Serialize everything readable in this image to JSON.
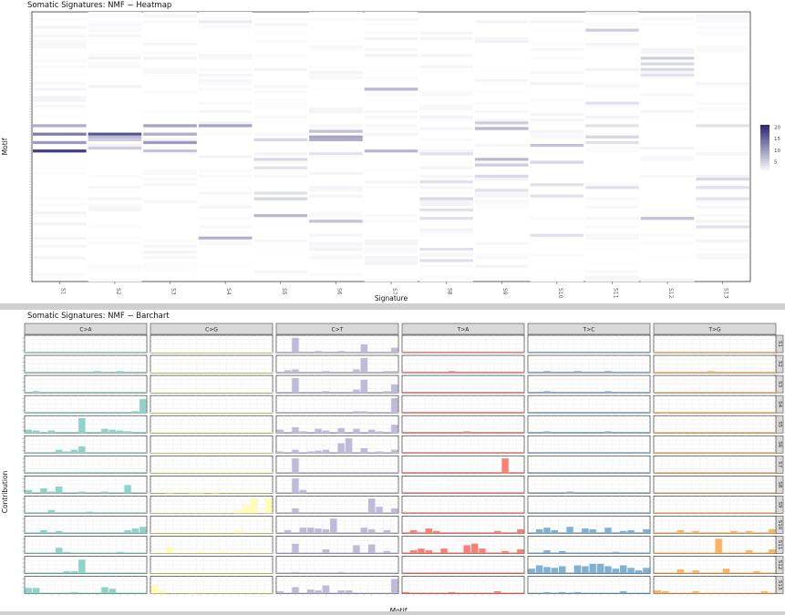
{
  "heatmap": {
    "title": "Somatic Signatures: NMF − Heatmap",
    "xlabel": "Signature",
    "ylabel": "Motif",
    "legend_ticks": [
      20,
      15,
      10,
      5
    ],
    "chart_data": {
      "type": "heatmap",
      "x_categories": [
        "S1",
        "S2",
        "S3",
        "S4",
        "S5",
        "S6",
        "S7",
        "S8",
        "S9",
        "S10",
        "S11",
        "S12",
        "S13"
      ],
      "y_count": 96,
      "value_range": [
        0,
        21
      ],
      "colors": {
        "low": "#ffffff",
        "high": "#2e2b78"
      }
    }
  },
  "barchart": {
    "title": "Somatic Signatures: NMF − Barchart",
    "ylabel": "Contribution",
    "xlabel": "Motif",
    "mutation_types": [
      "C>A",
      "C>G",
      "C>T",
      "T>A",
      "T>C",
      "T>G"
    ],
    "signatures": [
      "S1",
      "S2",
      "S3",
      "S4",
      "S5",
      "S6",
      "S7",
      "S8",
      "S9",
      "S10",
      "S11",
      "S12",
      "S13"
    ],
    "type_colors": [
      "#8dd3c7",
      "#ffffb3",
      "#bebada",
      "#fb8072",
      "#80b1d3",
      "#fdb462"
    ],
    "chart_data": {
      "type": "bar",
      "facet_rows": [
        "S1",
        "S2",
        "S3",
        "S4",
        "S5",
        "S6",
        "S7",
        "S8",
        "S9",
        "S10",
        "S11",
        "S12",
        "S13"
      ],
      "facet_cols": [
        "C>A",
        "C>G",
        "C>T",
        "T>A",
        "T>C",
        "T>G"
      ],
      "bars_per_facet": 16,
      "values": {
        "S1": {
          "C>T": {
            "2": 0.9,
            "5": 0.1,
            "8": 0.1,
            "11": 0.5,
            "15": 0.3
          }
        },
        "S2": {
          "C>A": {
            "9": 0.1,
            "12": 0.1
          },
          "C>T": {
            "1": 0.15,
            "2": 0.2,
            "6": 0.1,
            "10": 0.2,
            "11": 0.9,
            "14": 0.1,
            "15": 0.1
          },
          "T>A": {
            "6": 0.1
          },
          "T>C": {
            "2": 0.1,
            "6": 0.1,
            "10": 0.1
          },
          "T>G": {
            "7": 0.1
          }
        },
        "S3": {
          "C>A": {
            "1": 0.1
          },
          "C>T": {
            "2": 0.9,
            "6": 0.1,
            "10": 0.2,
            "11": 0.8,
            "14": 0.1,
            "15": 0.5
          },
          "T>C": {
            "2": 0.1,
            "10": 0.1
          }
        },
        "S4": {
          "C>A": {
            "15": 0.85,
            "14": 0.1
          },
          "C>T": {
            "10": 0.1,
            "11": 0.1,
            "15": 0.9
          },
          "T>G": {
            "1": 0.05
          }
        },
        "S5": {
          "C>A": {
            "0": 0.2,
            "1": 0.15,
            "3": 0.15,
            "7": 0.9,
            "10": 0.25,
            "11": 0.2,
            "12": 0.15,
            "13": 0.1
          },
          "C>T": {
            "0": 0.2,
            "2": 0.35,
            "3": 0.1,
            "5": 0.25,
            "6": 0.15,
            "8": 0.3,
            "10": 0.25,
            "12": 0.2,
            "13": 0.1,
            "15": 0.5
          },
          "T>A": {
            "8": 0.1
          },
          "T>C": {
            "2": 0.1,
            "10": 0.1
          }
        },
        "S6": {
          "C>A": {
            "4": 0.2,
            "5": 0.1,
            "6": 0.2,
            "7": 0.4
          },
          "C>T": {
            "0": 0.1,
            "2": 0.2,
            "4": 0.1,
            "5": 0.15,
            "6": 0.2,
            "8": 0.6,
            "9": 0.9,
            "11": 0.3,
            "13": 0.1,
            "15": 0.2
          }
        },
        "S7": {
          "C>T": {
            "2": 0.9
          },
          "T>A": {
            "13": 0.9
          }
        },
        "S8": {
          "C>A": {
            "0": 0.2,
            "2": 0.3,
            "3": 0.1,
            "4": 0.4,
            "7": 0.1,
            "10": 0.1,
            "13": 0.5
          },
          "C>G": {
            "2": 0.1,
            "5": 0.1,
            "6": 0.1,
            "8": 0.1
          },
          "C>T": {
            "2": 0.9,
            "3": 0.2
          },
          "T>C": {
            "5": 0.1
          }
        },
        "S9": {
          "C>A": {
            "3": 0.2,
            "8": 0.1
          },
          "C>G": {
            "11": 0.2,
            "12": 0.5,
            "13": 0.9,
            "15": 0.9
          },
          "C>T": {
            "2": 0.3,
            "12": 0.9,
            "13": 0.4,
            "15": 0.3
          }
        },
        "S10": {
          "C>A": {
            "2": 0.2,
            "4": 0.15,
            "13": 0.2,
            "14": 0.3,
            "15": 0.4
          },
          "C>G": {
            "11": 0.2
          },
          "C>T": {
            "1": 0.2,
            "3": 0.35,
            "4": 0.35,
            "5": 0.3,
            "6": 0.25,
            "7": 0.9,
            "11": 0.35,
            "12": 0.25,
            "14": 0.2
          },
          "T>A": {
            "1": 0.2,
            "3": 0.3,
            "4": 0.15,
            "12": 0.15,
            "15": 0.25
          },
          "T>C": {
            "1": 0.25,
            "2": 0.35,
            "3": 0.2,
            "5": 0.4,
            "7": 0.3,
            "8": 0.25,
            "10": 0.35,
            "12": 0.15,
            "13": 0.2,
            "15": 0.25
          },
          "T>G": {
            "3": 0.2,
            "5": 0.15,
            "10": 0.15,
            "12": 0.15,
            "15": 0.25
          }
        },
        "S11": {
          "C>A": {
            "4": 0.35,
            "5": 0.1,
            "12": 0.1
          },
          "C>G": {
            "2": 0.4,
            "6": 0.1,
            "9": 0.1
          },
          "C>T": {
            "2": 0.6,
            "6": 0.25,
            "10": 0.5,
            "12": 0.55,
            "14": 0.15
          },
          "T>A": {
            "1": 0.2,
            "2": 0.3,
            "3": 0.2,
            "5": 0.3,
            "8": 0.5,
            "9": 0.6,
            "10": 0.3,
            "13": 0.15,
            "15": 0.25
          },
          "T>C": {
            "2": 0.2,
            "4": 0.15,
            "11": 0.1
          },
          "T>G": {
            "8": 0.9,
            "12": 0.2,
            "15": 0.25
          }
        },
        "S12": {
          "C>A": {
            "1": 0.05,
            "5": 0.15,
            "6": 0.15,
            "7": 0.85
          },
          "C>T": {
            "2": 0.1,
            "8": 0.1
          },
          "T>C": {
            "0": 0.3,
            "1": 0.5,
            "2": 0.4,
            "3": 0.35,
            "4": 0.45,
            "6": 0.5,
            "7": 0.45,
            "8": 0.6,
            "9": 0.6,
            "10": 0.45,
            "11": 0.3,
            "12": 0.5,
            "13": 0.35,
            "14": 0.2,
            "15": 0.35
          },
          "T>G": {
            "3": 0.25,
            "5": 0.2,
            "9": 0.3,
            "13": 0.15
          }
        },
        "S13": {
          "C>A": {
            "0": 0.35,
            "1": 0.35,
            "6": 0.1,
            "10": 0.4,
            "11": 0.3
          },
          "C>G": {
            "0": 0.5,
            "1": 0.2,
            "5": 0.1
          },
          "C>T": {
            "0": 0.15,
            "2": 0.4,
            "4": 0.25,
            "5": 0.2,
            "6": 0.5,
            "8": 0.2,
            "9": 0.2,
            "15": 0.9
          },
          "T>A": {
            "0": 0.1,
            "6": 0.1,
            "12": 0.15
          },
          "T>C": {
            "2": 0.1,
            "4": 0.1,
            "6": 0.1,
            "12": 0.15
          },
          "T>G": {
            "0": 0.2,
            "1": 0.15,
            "5": 0.15,
            "14": 0.15
          }
        }
      }
    }
  }
}
